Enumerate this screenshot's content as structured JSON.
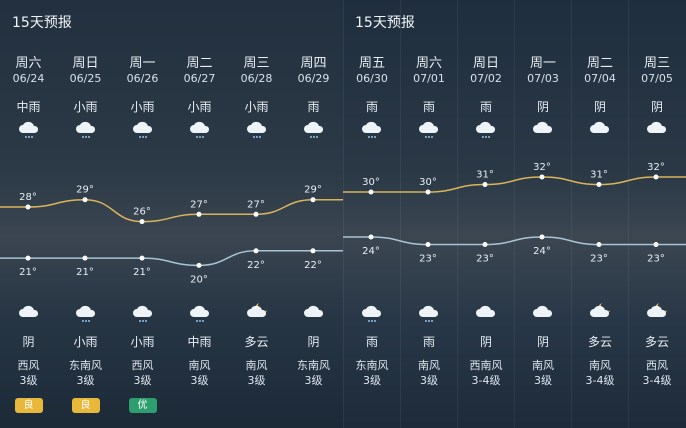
{
  "panels": [
    {
      "title": "15天预报",
      "days": [
        {
          "weekday": "周六",
          "date": "06/24",
          "day_cond": "中雨",
          "day_icon": "rain-icon",
          "high": "28°",
          "low": "21°",
          "night_icon": "cloud-icon",
          "night_cond": "阴",
          "wind_dir": "西风",
          "wind_level": "3级",
          "aqi": "良",
          "aqi_color": "#e8b83a"
        },
        {
          "weekday": "周日",
          "date": "06/25",
          "day_cond": "小雨",
          "day_icon": "rain-icon",
          "high": "29°",
          "low": "21°",
          "night_icon": "rain-icon",
          "night_cond": "小雨",
          "wind_dir": "东南风",
          "wind_level": "3级",
          "aqi": "良",
          "aqi_color": "#e8b83a"
        },
        {
          "weekday": "周一",
          "date": "06/26",
          "day_cond": "小雨",
          "day_icon": "rain-icon",
          "high": "26°",
          "low": "21°",
          "night_icon": "rain-icon",
          "night_cond": "小雨",
          "wind_dir": "西风",
          "wind_level": "3级",
          "aqi": "优",
          "aqi_color": "#2e9e6e"
        },
        {
          "weekday": "周二",
          "date": "06/27",
          "day_cond": "小雨",
          "day_icon": "rain-icon",
          "high": "27°",
          "low": "20°",
          "night_icon": "rain-icon",
          "night_cond": "中雨",
          "wind_dir": "南风",
          "wind_level": "3级"
        },
        {
          "weekday": "周三",
          "date": "06/28",
          "day_cond": "小雨",
          "day_icon": "rain-icon",
          "high": "27°",
          "low": "22°",
          "night_icon": "cloudy-moon-icon",
          "night_cond": "多云",
          "wind_dir": "南风",
          "wind_level": "3级"
        },
        {
          "weekday": "周四",
          "date": "06/29",
          "day_cond": "雨",
          "day_icon": "rain-icon",
          "high": "29°",
          "low": "22°",
          "night_icon": "cloud-icon",
          "night_cond": "阴",
          "wind_dir": "东南风",
          "wind_level": "3级"
        }
      ]
    },
    {
      "title": "15天预报",
      "days": [
        {
          "weekday": "周五",
          "date": "06/30",
          "day_cond": "雨",
          "day_icon": "rain-icon",
          "high": "30°",
          "low": "24°",
          "night_icon": "rain-icon",
          "night_cond": "雨",
          "wind_dir": "东南风",
          "wind_level": "3级"
        },
        {
          "weekday": "周六",
          "date": "07/01",
          "day_cond": "雨",
          "day_icon": "rain-icon",
          "high": "30°",
          "low": "23°",
          "night_icon": "rain-icon",
          "night_cond": "雨",
          "wind_dir": "南风",
          "wind_level": "3级"
        },
        {
          "weekday": "周日",
          "date": "07/02",
          "day_cond": "雨",
          "day_icon": "rain-icon",
          "high": "31°",
          "low": "23°",
          "night_icon": "cloud-icon",
          "night_cond": "阴",
          "wind_dir": "西南风",
          "wind_level": "3-4级"
        },
        {
          "weekday": "周一",
          "date": "07/03",
          "day_cond": "阴",
          "day_icon": "cloud-icon",
          "high": "32°",
          "low": "24°",
          "night_icon": "cloud-icon",
          "night_cond": "阴",
          "wind_dir": "南风",
          "wind_level": "3级"
        },
        {
          "weekday": "周二",
          "date": "07/04",
          "day_cond": "阴",
          "day_icon": "cloud-icon",
          "high": "31°",
          "low": "23°",
          "night_icon": "cloudy-moon-icon",
          "night_cond": "多云",
          "wind_dir": "南风",
          "wind_level": "3-4级"
        },
        {
          "weekday": "周三",
          "date": "07/05",
          "day_cond": "阴",
          "day_icon": "cloud-icon",
          "high": "32°",
          "low": "23°",
          "night_icon": "cloudy-moon-icon",
          "night_cond": "多云",
          "wind_dir": "西风",
          "wind_level": "3-4级"
        }
      ]
    }
  ],
  "colors": {
    "high_line": "#d9b45a",
    "low_line": "#a9c4d4"
  }
}
